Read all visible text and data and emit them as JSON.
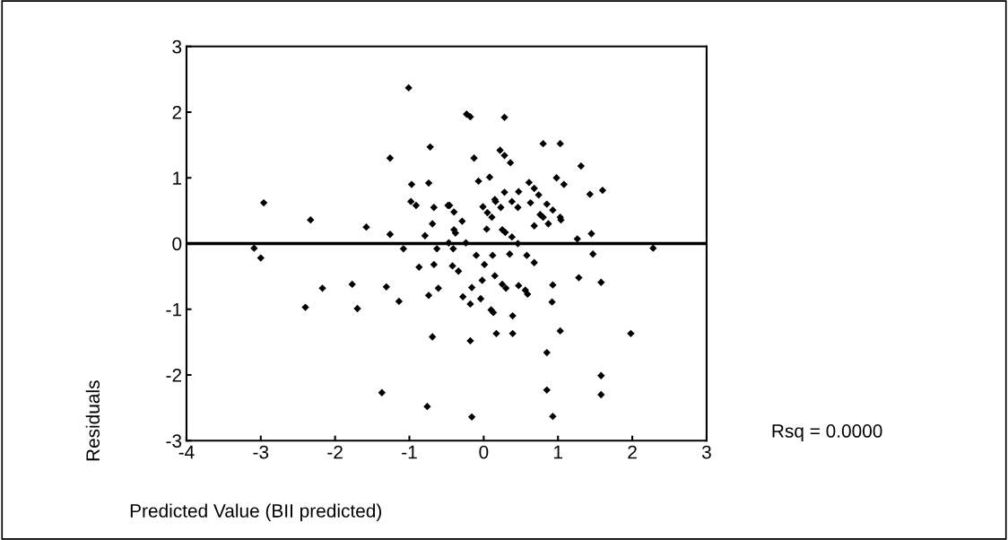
{
  "chart_data": {
    "type": "scatter",
    "xlabel": "Predicted Value (BII predicted)",
    "ylabel": "Residuals",
    "annotations": [
      "Rsq = 0.0000"
    ],
    "marker": "diamond",
    "grid": false,
    "legend": false,
    "xlim": [
      -4,
      3
    ],
    "xticks": [
      -4,
      -3,
      -2,
      -1,
      0,
      1,
      2,
      3
    ],
    "ylim": [
      -3,
      3
    ],
    "yticks": [
      -3,
      -2,
      -1,
      0,
      1,
      2,
      3
    ],
    "ref_lines": [
      {
        "axis": "y",
        "value": 0,
        "color": "#000000"
      }
    ],
    "series": [
      {
        "color": "#000000",
        "x": [
          -3.09,
          -3.0,
          -2.96,
          -2.33,
          -2.4,
          -2.17,
          -1.58,
          -1.77,
          -1.7,
          -1.26,
          -1.26,
          -1.31,
          -1.14,
          -1.37,
          -1.01,
          -0.97,
          -0.98,
          -0.91,
          -1.08,
          -0.72,
          -0.74,
          -0.67,
          -0.48,
          -0.69,
          -0.79,
          -0.87,
          -0.67,
          -0.74,
          -0.61,
          -0.63,
          -0.69,
          -0.76,
          -0.23,
          -0.18,
          0.28,
          0.8,
          1.03,
          0.22,
          0.28,
          0.36,
          -0.13,
          1.31,
          0.08,
          -0.07,
          0.98,
          1.08,
          0.61,
          0.68,
          0.74,
          0.47,
          0.28,
          1.6,
          1.43,
          0.15,
          0.16,
          0.38,
          0.46,
          0.63,
          0.85,
          0.93,
          0.23,
          -0.01,
          0.05,
          0.11,
          -0.46,
          -0.4,
          -0.29,
          0.76,
          0.8,
          1.03,
          1.04,
          0.87,
          0.68,
          0.04,
          -0.4,
          -0.38,
          0.25,
          0.29,
          0.38,
          0.46,
          1.26,
          1.45,
          -0.47,
          -0.24,
          2.28,
          -0.41,
          -0.1,
          0.12,
          0.35,
          0.58,
          1.47,
          -0.42,
          0.01,
          0.68,
          -0.34,
          -0.02,
          0.15,
          0.25,
          0.3,
          0.47,
          0.56,
          0.59,
          -0.16,
          -0.28,
          -0.18,
          -0.04,
          0.93,
          0.92,
          1.28,
          1.58,
          0.1,
          0.13,
          0.39,
          -0.18,
          0.17,
          0.39,
          1.03,
          1.98,
          0.85,
          1.58,
          0.85,
          1.58,
          -0.16,
          0.93
        ],
        "values": [
          -0.07,
          -0.22,
          0.62,
          0.36,
          -0.97,
          -0.68,
          0.25,
          -0.62,
          -0.99,
          1.3,
          0.14,
          -0.66,
          -0.88,
          -2.27,
          2.37,
          0.9,
          0.64,
          0.58,
          -0.08,
          1.47,
          0.92,
          0.55,
          0.58,
          0.3,
          0.12,
          -0.36,
          -0.32,
          -0.79,
          -0.68,
          -0.08,
          -1.42,
          -2.48,
          1.97,
          1.93,
          1.92,
          1.52,
          1.52,
          1.42,
          1.34,
          1.23,
          1.3,
          1.18,
          1.01,
          0.95,
          1.0,
          0.9,
          0.93,
          0.84,
          0.74,
          0.79,
          0.78,
          0.81,
          0.75,
          0.67,
          0.64,
          0.64,
          0.55,
          0.62,
          0.6,
          0.51,
          0.55,
          0.56,
          0.47,
          0.4,
          0.58,
          0.48,
          0.34,
          0.44,
          0.4,
          0.4,
          0.36,
          0.3,
          0.27,
          0.22,
          0.21,
          0.16,
          0.21,
          0.17,
          0.1,
          0.0,
          0.07,
          0.15,
          0.01,
          0.01,
          -0.07,
          -0.08,
          -0.18,
          -0.18,
          -0.16,
          -0.18,
          -0.16,
          -0.34,
          -0.32,
          -0.29,
          -0.42,
          -0.56,
          -0.49,
          -0.62,
          -0.68,
          -0.64,
          -0.71,
          -0.77,
          -0.67,
          -0.81,
          -0.92,
          -0.84,
          -0.63,
          -0.89,
          -0.52,
          -0.59,
          -1.01,
          -1.05,
          -1.1,
          -1.48,
          -1.37,
          -1.37,
          -1.33,
          -1.37,
          -1.66,
          -2.01,
          -2.23,
          -2.3,
          -2.64,
          -2.63
        ]
      }
    ]
  }
}
